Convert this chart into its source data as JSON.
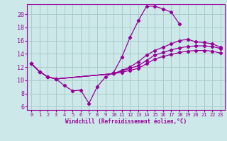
{
  "bg_color": "#cce8e8",
  "line_color": "#990099",
  "grid_color": "#aacccc",
  "xlabel": "Windchill (Refroidissement éolien,°C)",
  "xticks": [
    0,
    1,
    2,
    3,
    4,
    5,
    6,
    7,
    8,
    9,
    10,
    11,
    12,
    13,
    14,
    15,
    16,
    17,
    18,
    19,
    20,
    21,
    22,
    23
  ],
  "yticks": [
    6,
    8,
    10,
    12,
    14,
    16,
    18,
    20
  ],
  "xlim": [
    -0.5,
    23.5
  ],
  "ylim": [
    5.5,
    21.5
  ],
  "series": [
    {
      "x": [
        0,
        1,
        2,
        3,
        4,
        5,
        6,
        7,
        8,
        9,
        10,
        11,
        12,
        13,
        14,
        15,
        16,
        17,
        18
      ],
      "y": [
        12.5,
        11.3,
        10.5,
        10.2,
        9.2,
        8.4,
        8.5,
        6.5,
        9.0,
        10.5,
        11.2,
        13.5,
        16.5,
        19.0,
        21.2,
        21.2,
        20.8,
        20.3,
        18.5
      ]
    },
    {
      "x": [
        0,
        1,
        2,
        3,
        10,
        11,
        12,
        13,
        14,
        15,
        16,
        17,
        18,
        19,
        20,
        21,
        22,
        23
      ],
      "y": [
        12.5,
        11.3,
        10.5,
        10.2,
        11.0,
        11.5,
        12.0,
        12.8,
        13.8,
        14.5,
        15.0,
        15.5,
        16.0,
        16.2,
        15.8,
        15.7,
        15.5,
        15.0
      ]
    },
    {
      "x": [
        0,
        1,
        2,
        3,
        10,
        11,
        12,
        13,
        14,
        15,
        16,
        17,
        18,
        19,
        20,
        21,
        22,
        23
      ],
      "y": [
        12.5,
        11.3,
        10.5,
        10.2,
        11.0,
        11.4,
        11.8,
        12.2,
        13.0,
        13.8,
        14.2,
        14.6,
        14.9,
        15.1,
        15.2,
        15.2,
        15.1,
        14.8
      ]
    },
    {
      "x": [
        0,
        1,
        2,
        3,
        10,
        11,
        12,
        13,
        14,
        15,
        16,
        17,
        18,
        19,
        20,
        21,
        22,
        23
      ],
      "y": [
        12.5,
        11.3,
        10.5,
        10.2,
        11.0,
        11.2,
        11.5,
        11.8,
        12.5,
        13.2,
        13.6,
        13.9,
        14.2,
        14.4,
        14.5,
        14.5,
        14.4,
        14.1
      ]
    }
  ]
}
